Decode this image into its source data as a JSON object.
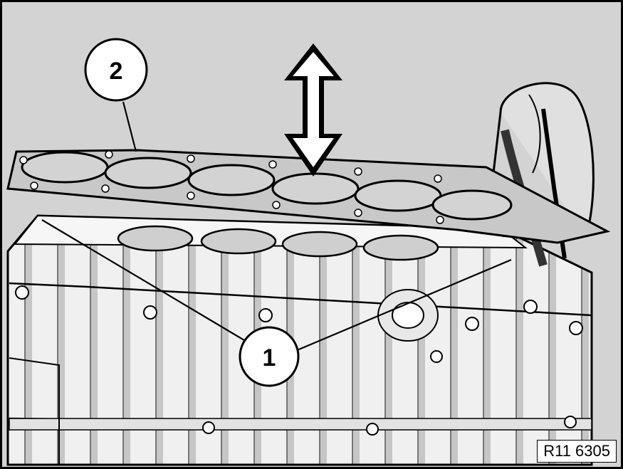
{
  "callouts": {
    "one": "1",
    "two": "2"
  },
  "figure_ref": "R11 6305",
  "colors": {
    "background": "#d3d3d3",
    "metal_light": "#f4f4f4",
    "metal_shadow": "#9a9a9a",
    "outline": "#000000"
  }
}
